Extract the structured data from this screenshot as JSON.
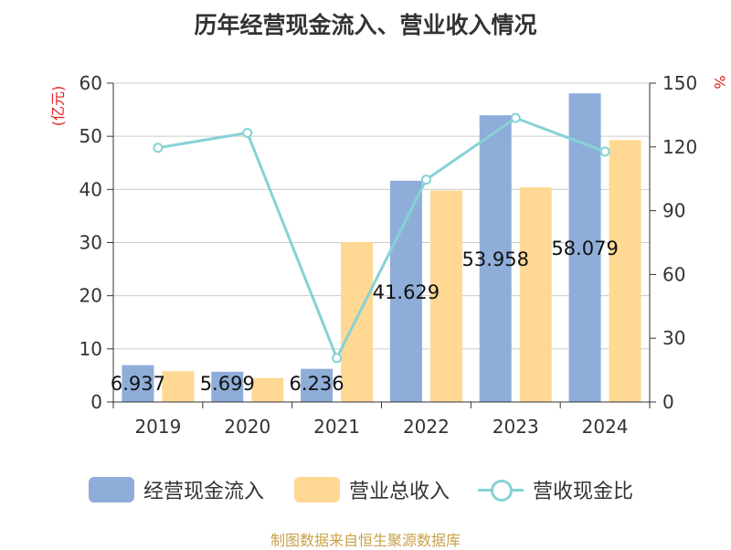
{
  "title": "历年经营现金流入、营业收入情况",
  "source": "制图数据来自恒生聚源数据库",
  "colors": {
    "cash_inflow": "#8eadd9",
    "revenue": "#ffd894",
    "ratio": "#86d2d5",
    "axis_label_red": "#e02020",
    "text": "#333333"
  },
  "legend": [
    {
      "label": "经营现金流入",
      "kind": "bar",
      "color": "#8eadd9"
    },
    {
      "label": "营业总收入",
      "kind": "bar",
      "color": "#ffd894"
    },
    {
      "label": "营收现金比",
      "kind": "line",
      "color": "#86d2d5"
    }
  ],
  "chart_data": {
    "type": "bar",
    "title": "历年经营现金流入、营业收入情况",
    "categories": [
      "2019",
      "2020",
      "2021",
      "2022",
      "2023",
      "2024"
    ],
    "y_left": {
      "unit_label": "(亿元)",
      "ylim": [
        0,
        60
      ],
      "ticks": [
        0,
        10,
        20,
        30,
        40,
        50,
        60
      ]
    },
    "y_right": {
      "unit_label": "%",
      "ylim": [
        0,
        150
      ],
      "ticks": [
        0,
        30,
        60,
        90,
        120,
        150
      ]
    },
    "grid": true,
    "legend_position": "bottom",
    "series": [
      {
        "name": "经营现金流入",
        "type": "bar",
        "axis": "left",
        "values": [
          6.937,
          5.699,
          6.236,
          41.629,
          53.958,
          58.079
        ],
        "labels": [
          "6.937",
          "5.699",
          "6.236",
          "41.629",
          "53.958",
          "58.079"
        ]
      },
      {
        "name": "营业总收入",
        "type": "bar",
        "axis": "left",
        "values": [
          5.8,
          4.5,
          30.1,
          39.8,
          40.4,
          49.3
        ]
      },
      {
        "name": "营收现金比",
        "type": "line",
        "axis": "right",
        "values": [
          119.6,
          126.6,
          20.7,
          104.6,
          133.6,
          117.8
        ]
      }
    ]
  }
}
